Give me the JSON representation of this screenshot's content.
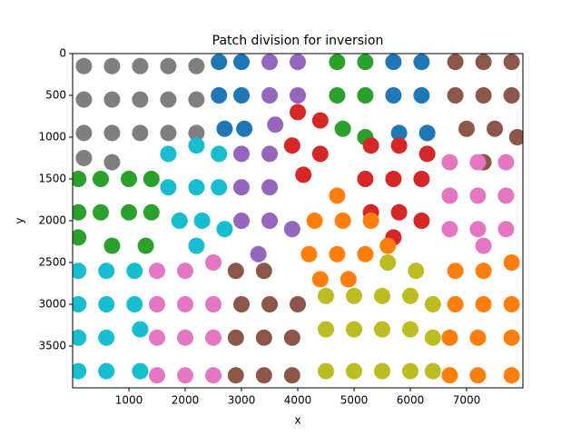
{
  "chart_data": {
    "type": "scatter",
    "title": "Patch division for inversion",
    "x_label": "x",
    "y_label": "y",
    "xlim": [
      0,
      8000
    ],
    "ylim": [
      4000,
      0
    ],
    "xticks": [
      1000,
      2000,
      3000,
      4000,
      5000,
      6000,
      7000
    ],
    "yticks": [
      0,
      500,
      1000,
      1500,
      2000,
      2500,
      3000,
      3500
    ],
    "series": [
      {
        "color": "#7f7f7f",
        "x": [
          200,
          700,
          1200,
          1700,
          2200,
          200,
          700,
          1200,
          1700,
          2200,
          200,
          700,
          1200,
          1700,
          2200,
          200,
          700
        ],
        "y": [
          150,
          150,
          150,
          150,
          150,
          550,
          550,
          550,
          550,
          550,
          950,
          950,
          950,
          950,
          950,
          1250,
          1300
        ]
      },
      {
        "color": "#1f77b4",
        "x": [
          2600,
          3000,
          2600,
          3000,
          2700,
          3050,
          5700,
          6200,
          5700,
          6200,
          5800,
          6300
        ],
        "y": [
          100,
          100,
          500,
          500,
          900,
          900,
          100,
          100,
          500,
          500,
          950,
          950
        ]
      },
      {
        "color": "#9467bd",
        "x": [
          3500,
          4000,
          3500,
          4000,
          3600,
          3000,
          3500,
          3000,
          3500,
          3000,
          3500,
          3900,
          3300
        ],
        "y": [
          100,
          100,
          500,
          500,
          850,
          1200,
          1200,
          1600,
          1600,
          2000,
          2000,
          2100,
          2400
        ]
      },
      {
        "color": "#2ca02c",
        "x": [
          4700,
          5200,
          4700,
          5200,
          4800,
          5200,
          100,
          500,
          1000,
          1400,
          100,
          500,
          1000,
          1400,
          100,
          700,
          1300
        ],
        "y": [
          100,
          100,
          500,
          500,
          900,
          1000,
          1500,
          1500,
          1500,
          1500,
          1900,
          1900,
          1900,
          1900,
          2200,
          2300,
          2300
        ]
      },
      {
        "color": "#8c564b",
        "x": [
          6800,
          7300,
          7800,
          6800,
          7300,
          7800,
          7000,
          7500,
          7900,
          7300,
          2900,
          3400,
          3000,
          3500,
          4000,
          2900,
          3400,
          3900,
          2900,
          3400,
          3900
        ],
        "y": [
          100,
          100,
          100,
          500,
          500,
          500,
          900,
          900,
          1000,
          1300,
          2600,
          2600,
          3000,
          3000,
          3000,
          3400,
          3400,
          3400,
          3850,
          3850,
          3850
        ]
      },
      {
        "color": "#d62728",
        "x": [
          4000,
          4400,
          3900,
          4400,
          4100,
          5300,
          5800,
          6300,
          5200,
          5700,
          6200,
          5300,
          5800,
          6200,
          5700
        ],
        "y": [
          700,
          800,
          1100,
          1200,
          1450,
          1100,
          1100,
          1200,
          1500,
          1500,
          1500,
          1900,
          1900,
          2000,
          2200
        ]
      },
      {
        "color": "#17becf",
        "x": [
          1700,
          2200,
          2600,
          1700,
          2200,
          2600,
          1900,
          2300,
          2700,
          2200,
          100,
          600,
          1100,
          100,
          600,
          1100,
          100,
          600,
          1200,
          100,
          600,
          1200
        ],
        "y": [
          1200,
          1100,
          1200,
          1600,
          1600,
          1600,
          2000,
          2000,
          2100,
          2300,
          2600,
          2600,
          2600,
          3000,
          3000,
          3000,
          3400,
          3400,
          3300,
          3800,
          3800,
          3800
        ]
      },
      {
        "color": "#e377c2",
        "x": [
          6700,
          7200,
          7700,
          6700,
          7200,
          7700,
          6700,
          7200,
          7700,
          7300,
          1500,
          2000,
          2500,
          1500,
          2000,
          2500,
          1500,
          2000,
          2500,
          1500,
          2000,
          2500
        ],
        "y": [
          1300,
          1300,
          1300,
          1700,
          1700,
          1700,
          2100,
          2100,
          2100,
          2300,
          2600,
          2600,
          2500,
          3000,
          3000,
          3000,
          3400,
          3400,
          3400,
          3850,
          3850,
          3850
        ]
      },
      {
        "color": "#ff7f0e",
        "x": [
          4700,
          4300,
          4800,
          5300,
          4200,
          4700,
          5200,
          5600,
          4400,
          4900,
          6800,
          7300,
          7800,
          6800,
          7300,
          7800,
          6700,
          7200,
          7800,
          6700,
          7200,
          7800
        ],
        "y": [
          1700,
          2000,
          2000,
          2000,
          2400,
          2400,
          2400,
          2300,
          2700,
          2700,
          2600,
          2600,
          2500,
          3000,
          3000,
          3000,
          3400,
          3400,
          3400,
          3850,
          3850,
          3850
        ]
      },
      {
        "color": "#bcbd22",
        "x": [
          5600,
          6100,
          4500,
          5000,
          5500,
          6000,
          6400,
          4500,
          5000,
          5500,
          6000,
          6400,
          4500,
          5000,
          5500,
          6000,
          6400
        ],
        "y": [
          2500,
          2600,
          2900,
          2900,
          2900,
          2900,
          3000,
          3300,
          3300,
          3300,
          3300,
          3400,
          3800,
          3800,
          3800,
          3800,
          3800
        ]
      }
    ]
  }
}
